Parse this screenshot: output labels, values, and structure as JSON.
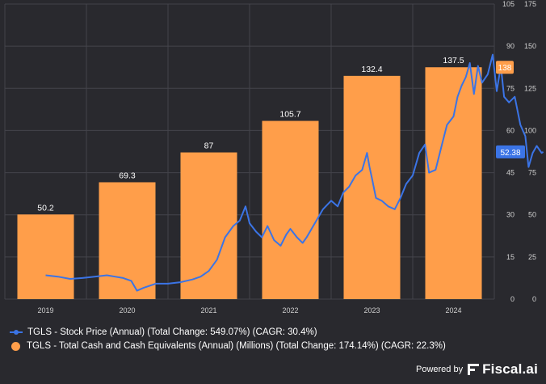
{
  "chart_data": {
    "type": "bar+line",
    "categories": [
      "2019",
      "2020",
      "2021",
      "2022",
      "2023",
      "2024"
    ],
    "series": [
      {
        "name": "TGLS - Total Cash and Cash Equivalents (Annual) (Millions)",
        "type": "bar",
        "axis": "right-outer",
        "color": "#ff9e4a",
        "values": [
          50.2,
          69.3,
          87,
          105.7,
          132.4,
          137.5
        ],
        "labels": [
          "50.2",
          "69.3",
          "87",
          "105.7",
          "132.4",
          "137.5"
        ],
        "last_value_badge": "138"
      },
      {
        "name": "TGLS - Stock Price (Annual)",
        "type": "line",
        "axis": "right-inner",
        "color": "#3b74e6",
        "anchor_points": [
          [
            2019.0,
            8.5
          ],
          [
            2019.15,
            8.0
          ],
          [
            2019.3,
            7.2
          ],
          [
            2019.45,
            7.5
          ],
          [
            2019.6,
            8.0
          ],
          [
            2019.75,
            8.5
          ],
          [
            2019.85,
            8.0
          ],
          [
            2019.95,
            7.5
          ],
          [
            2020.05,
            6.5
          ],
          [
            2020.12,
            3.0
          ],
          [
            2020.2,
            4.0
          ],
          [
            2020.35,
            5.5
          ],
          [
            2020.5,
            5.5
          ],
          [
            2020.65,
            6.0
          ],
          [
            2020.8,
            7.0
          ],
          [
            2020.9,
            8.0
          ],
          [
            2021.0,
            10.0
          ],
          [
            2021.1,
            14.0
          ],
          [
            2021.2,
            22.0
          ],
          [
            2021.3,
            26.0
          ],
          [
            2021.38,
            28.0
          ],
          [
            2021.45,
            33.0
          ],
          [
            2021.5,
            27.0
          ],
          [
            2021.58,
            24.0
          ],
          [
            2021.65,
            22.0
          ],
          [
            2021.72,
            26.0
          ],
          [
            2021.8,
            21.0
          ],
          [
            2021.88,
            19.0
          ],
          [
            2021.95,
            23.0
          ],
          [
            2022.0,
            25.0
          ],
          [
            2022.08,
            22.0
          ],
          [
            2022.15,
            20.0
          ],
          [
            2022.2,
            22.0
          ],
          [
            2022.3,
            27.0
          ],
          [
            2022.4,
            32.0
          ],
          [
            2022.5,
            35.0
          ],
          [
            2022.58,
            33.0
          ],
          [
            2022.65,
            38.0
          ],
          [
            2022.72,
            40.0
          ],
          [
            2022.8,
            44.0
          ],
          [
            2022.88,
            46.0
          ],
          [
            2022.94,
            52.0
          ],
          [
            2022.97,
            47.0
          ],
          [
            2023.0,
            43.0
          ],
          [
            2023.05,
            36.0
          ],
          [
            2023.12,
            35.0
          ],
          [
            2023.2,
            33.0
          ],
          [
            2023.28,
            32.0
          ],
          [
            2023.35,
            36.0
          ],
          [
            2023.42,
            41.0
          ],
          [
            2023.5,
            44.0
          ],
          [
            2023.58,
            52.0
          ],
          [
            2023.65,
            55.0
          ],
          [
            2023.7,
            45.0
          ],
          [
            2023.78,
            46.0
          ],
          [
            2023.85,
            54.0
          ],
          [
            2023.92,
            62.0
          ],
          [
            2024.0,
            65.0
          ],
          [
            2024.05,
            72.0
          ],
          [
            2024.1,
            76.0
          ],
          [
            2024.15,
            79.0
          ],
          [
            2024.2,
            84.0
          ],
          [
            2024.25,
            73.0
          ],
          [
            2024.3,
            83.0
          ],
          [
            2024.35,
            77.0
          ],
          [
            2024.42,
            80.0
          ],
          [
            2024.48,
            87.0
          ],
          [
            2024.53,
            74.0
          ],
          [
            2024.58,
            83.0
          ],
          [
            2024.62,
            72.0
          ],
          [
            2024.68,
            70.0
          ],
          [
            2024.75,
            72.0
          ],
          [
            2024.82,
            62.0
          ],
          [
            2024.88,
            58.0
          ],
          [
            2024.92,
            47.0
          ],
          [
            2024.97,
            52.0
          ],
          [
            2025.02,
            54.5
          ],
          [
            2025.08,
            52.0
          ],
          [
            2025.1,
            52.38
          ]
        ],
        "last_value_badge": "52.38"
      }
    ],
    "axes": {
      "right_inner": {
        "min": 0,
        "max": 105,
        "ticks": [
          "0",
          "15",
          "30",
          "45",
          "60",
          "75",
          "90",
          "105"
        ]
      },
      "right_outer": {
        "min": 0,
        "max": 175,
        "ticks": [
          "0",
          "25",
          "50",
          "75",
          "100",
          "125",
          "150",
          "175"
        ]
      }
    },
    "x_tick_labels": [
      "2019",
      "2020",
      "2021",
      "2022",
      "2023",
      "2024"
    ],
    "grid": true
  },
  "legend": {
    "items": [
      {
        "label": "TGLS - Stock Price (Annual) (Total Change: 549.07%) (CAGR: 30.4%)"
      },
      {
        "label": "TGLS - Total Cash and Cash Equivalents (Annual) (Millions) (Total Change: 174.14%) (CAGR: 22.3%)"
      }
    ]
  },
  "footer": {
    "powered_by": "Powered by",
    "brand": "Fiscal.ai"
  },
  "colors": {
    "background": "#29292e",
    "bar": "#ff9e4a",
    "line": "#3b74e6",
    "grid": "#44444b",
    "text": "#cfcfcf"
  }
}
